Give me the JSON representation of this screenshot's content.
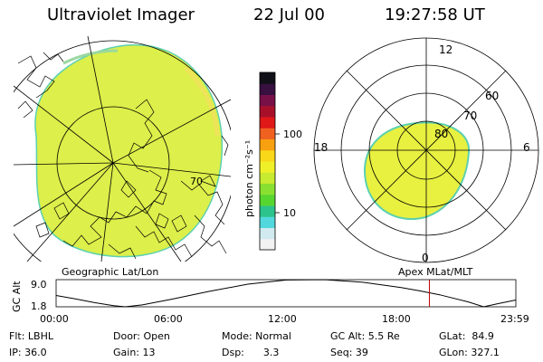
{
  "header": {
    "title": "Ultraviolet Imager",
    "date": "22 Jul 00",
    "time": "19:27:58 UT"
  },
  "colorbar": {
    "unit_label": "photon cm⁻²s⁻¹",
    "tick_labels": [
      "100",
      "10"
    ],
    "colors": [
      "#f2f2f2",
      "#d0eaf0",
      "#52d8dc",
      "#2cc48c",
      "#58d630",
      "#8ae030",
      "#c8ea30",
      "#f0f028",
      "#f8d818",
      "#f8a010",
      "#f06020",
      "#e01818",
      "#a8102a",
      "#781048",
      "#381040",
      "#101018"
    ]
  },
  "left_map": {
    "label": "Geographic Lat/Lon",
    "grid_label": "70",
    "fill_color": "#dcef4a"
  },
  "right_map": {
    "label": "Apex MLat/MLT",
    "mlt_labels": {
      "top": "12",
      "left": "18",
      "right": "6",
      "bottom": "0"
    },
    "mlat_labels": [
      "60",
      "70",
      "80"
    ],
    "fill_color": "#e8f040"
  },
  "altitude_plot": {
    "ylabel": "GC Alt",
    "y_ticks": [
      "9.0",
      "1.8"
    ],
    "x_ticks": [
      "00:00",
      "06:00",
      "12:00",
      "18:00",
      "23:59"
    ],
    "marker_color": "#c00000"
  },
  "chart_data": {
    "type": "line",
    "title": "",
    "xlabel": "",
    "ylabel": "GC Alt",
    "x": [
      0.0,
      1.0,
      2.0,
      3.0,
      3.6,
      4.5,
      6.0,
      8.0,
      10.0,
      12.0,
      14.0,
      16.0,
      18.0,
      19.0,
      20.0,
      21.5,
      22.3,
      23.0,
      23.98
    ],
    "series": [
      {
        "values": [
          4.8,
          3.9,
          2.9,
          2.1,
          1.8,
          2.3,
          3.8,
          5.9,
          7.8,
          8.9,
          9.0,
          8.3,
          6.9,
          6.0,
          5.0,
          3.1,
          1.8,
          2.6,
          3.6
        ]
      }
    ],
    "xlim": [
      0,
      23.98
    ],
    "ylim": [
      1.8,
      9.0
    ],
    "marker_time": 19.47
  },
  "footer": {
    "rows": [
      [
        "Flt: LBHL",
        "Door: Open",
        "Mode: Normal",
        "GC Alt: 5.5 Re",
        "GLat:  84.9"
      ],
      [
        "IP: 36.0",
        "Gain: 13",
        "Dsp:      3.3",
        "Seq: 39",
        "GLon: 327.1"
      ]
    ]
  }
}
